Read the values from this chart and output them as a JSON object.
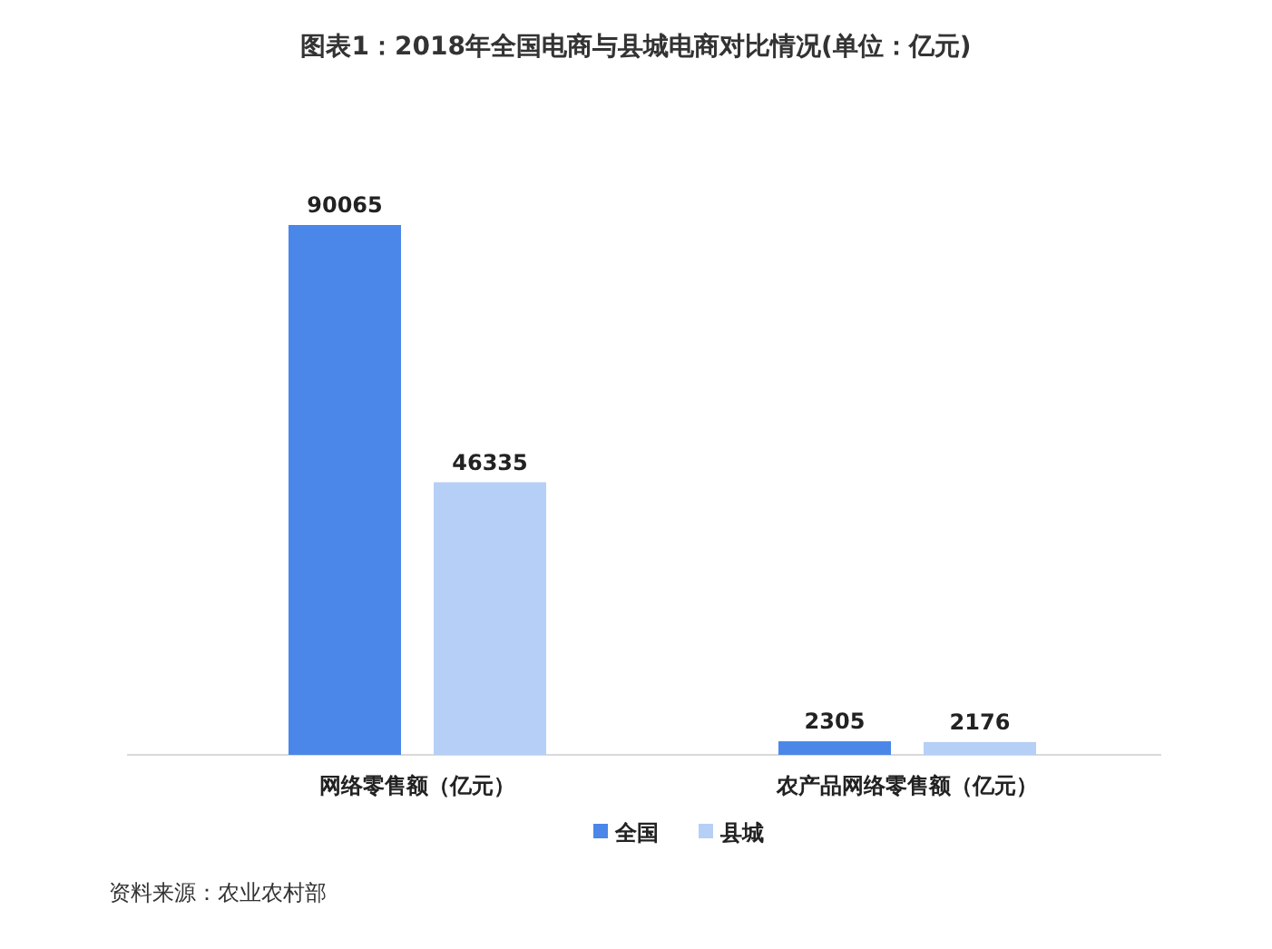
{
  "chart_data": {
    "type": "bar",
    "title": "图表1：2018年全国电商与县城电商对比情况(单位：亿元)",
    "categories": [
      "网络零售额（亿元）",
      "农产品网络零售额（亿元）"
    ],
    "series": [
      {
        "name": "全国",
        "color": "#4a87e8",
        "values": [
          90065,
          2305
        ]
      },
      {
        "name": "县城",
        "color": "#b6cff6",
        "values": [
          46335,
          2176
        ]
      }
    ],
    "data_labels": true,
    "legend": "bottom",
    "annotations": [
      "资料来源：农业农村部"
    ]
  }
}
